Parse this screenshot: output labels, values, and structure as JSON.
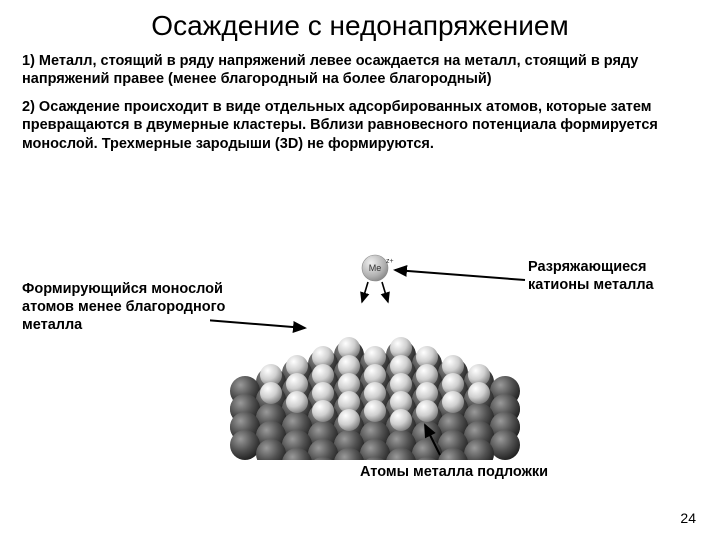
{
  "title": "Осаждение с недонапряжением",
  "para1": "1) Металл, стоящий в ряду напряжений левее осаждается на металл, стоящий в ряду напряжений правее (менее благородный на более благородный)",
  "para2": "2) Осаждение происходит в виде отдельных адсорбированных атомов, которые затем превращаются в двумерные кластеры. Вблизи равновесного потенциала формируется монослой. Трехмерные зародыши (3D) не формируются.",
  "label_left": "Формирующийся монослой атомов менее благородного металла",
  "label_right": "Разряжающиеся катионы металла",
  "label_bottom": "Атомы металла подложки",
  "ion_label": "Me",
  "page_number": "24",
  "colors": {
    "substrate_dark": "#3a3a3a",
    "substrate_light": "#6a6a6a",
    "monolayer_dark": "#808080",
    "monolayer_light": "#e8e8e8",
    "ion_fill": "#b8b8b8",
    "ion_border": "#888"
  }
}
